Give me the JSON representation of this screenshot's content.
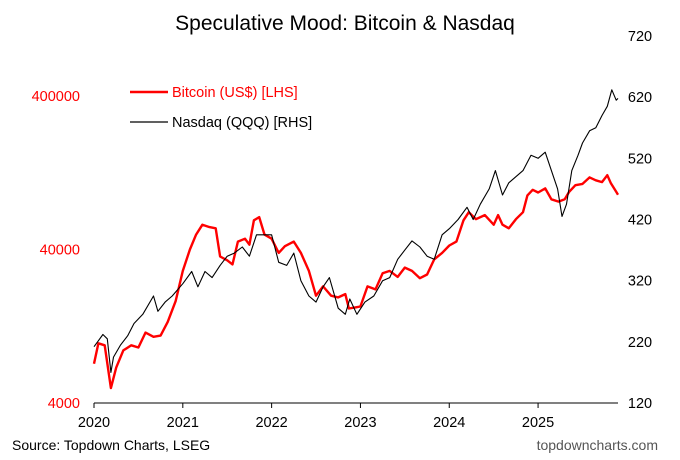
{
  "chart_data": {
    "type": "line",
    "title": "Speculative Mood: Bitcoin & Nasdaq",
    "source": "Source: Topdown Charts, LSEG",
    "watermark": "topdowncharts.com",
    "x_ticks": [
      "2020",
      "2021",
      "2022",
      "2023",
      "2024",
      "2025"
    ],
    "x_range": [
      2020.0,
      2025.9
    ],
    "left_axis": {
      "scale": "log",
      "range": [
        4000,
        400000
      ],
      "ticks": [
        "4000",
        "40000",
        "400000"
      ],
      "color": "#ff0000"
    },
    "right_axis": {
      "scale": "linear",
      "range": [
        120,
        720
      ],
      "ticks": [
        "120",
        "220",
        "320",
        "420",
        "520",
        "620",
        "720"
      ],
      "color": "#000000"
    },
    "legend_placement": "top-left",
    "grid": false,
    "series": [
      {
        "name": "Bitcoin (US$) [LHS]",
        "axis": "left",
        "color": "#ff0000",
        "points": [
          [
            2020.0,
            7200
          ],
          [
            2020.05,
            9800
          ],
          [
            2020.12,
            9500
          ],
          [
            2020.19,
            5000
          ],
          [
            2020.25,
            6800
          ],
          [
            2020.33,
            8800
          ],
          [
            2020.42,
            9500
          ],
          [
            2020.5,
            9200
          ],
          [
            2020.58,
            11500
          ],
          [
            2020.67,
            10800
          ],
          [
            2020.75,
            11000
          ],
          [
            2020.83,
            13500
          ],
          [
            2020.92,
            18500
          ],
          [
            2021.0,
            29000
          ],
          [
            2021.08,
            40000
          ],
          [
            2021.15,
            50000
          ],
          [
            2021.22,
            58000
          ],
          [
            2021.3,
            56000
          ],
          [
            2021.37,
            55000
          ],
          [
            2021.42,
            36000
          ],
          [
            2021.5,
            34000
          ],
          [
            2021.56,
            32000
          ],
          [
            2021.62,
            45000
          ],
          [
            2021.7,
            47000
          ],
          [
            2021.75,
            43000
          ],
          [
            2021.8,
            62000
          ],
          [
            2021.86,
            65000
          ],
          [
            2021.92,
            50000
          ],
          [
            2022.0,
            47000
          ],
          [
            2022.08,
            38000
          ],
          [
            2022.15,
            42000
          ],
          [
            2022.25,
            45000
          ],
          [
            2022.33,
            38000
          ],
          [
            2022.42,
            29000
          ],
          [
            2022.5,
            20000
          ],
          [
            2022.58,
            23000
          ],
          [
            2022.67,
            20000
          ],
          [
            2022.75,
            19500
          ],
          [
            2022.83,
            20500
          ],
          [
            2022.87,
            16500
          ],
          [
            2022.95,
            16800
          ],
          [
            2023.0,
            17000
          ],
          [
            2023.08,
            23000
          ],
          [
            2023.17,
            22000
          ],
          [
            2023.25,
            28000
          ],
          [
            2023.33,
            29000
          ],
          [
            2023.42,
            26500
          ],
          [
            2023.5,
            30500
          ],
          [
            2023.58,
            29000
          ],
          [
            2023.67,
            26000
          ],
          [
            2023.75,
            27500
          ],
          [
            2023.83,
            34500
          ],
          [
            2023.92,
            38000
          ],
          [
            2024.0,
            42500
          ],
          [
            2024.08,
            45000
          ],
          [
            2024.16,
            62000
          ],
          [
            2024.22,
            70000
          ],
          [
            2024.3,
            63000
          ],
          [
            2024.4,
            67000
          ],
          [
            2024.5,
            58000
          ],
          [
            2024.55,
            67000
          ],
          [
            2024.6,
            58000
          ],
          [
            2024.67,
            55000
          ],
          [
            2024.75,
            63000
          ],
          [
            2024.83,
            70000
          ],
          [
            2024.88,
            90000
          ],
          [
            2024.94,
            98000
          ],
          [
            2025.0,
            94000
          ],
          [
            2025.08,
            100000
          ],
          [
            2025.15,
            85000
          ],
          [
            2025.23,
            82000
          ],
          [
            2025.3,
            85000
          ],
          [
            2025.35,
            95000
          ],
          [
            2025.42,
            105000
          ],
          [
            2025.5,
            107000
          ],
          [
            2025.58,
            118000
          ],
          [
            2025.65,
            113000
          ],
          [
            2025.72,
            110000
          ],
          [
            2025.78,
            122000
          ],
          [
            2025.82,
            108000
          ],
          [
            2025.88,
            95000
          ],
          [
            2025.9,
            91000
          ]
        ]
      },
      {
        "name": "Nasdaq (QQQ) [RHS]",
        "axis": "right",
        "color": "#000000",
        "points": [
          [
            2020.0,
            212
          ],
          [
            2020.04,
            220
          ],
          [
            2020.1,
            232
          ],
          [
            2020.15,
            225
          ],
          [
            2020.19,
            170
          ],
          [
            2020.22,
            195
          ],
          [
            2020.3,
            215
          ],
          [
            2020.38,
            230
          ],
          [
            2020.45,
            250
          ],
          [
            2020.55,
            265
          ],
          [
            2020.67,
            295
          ],
          [
            2020.72,
            270
          ],
          [
            2020.8,
            285
          ],
          [
            2020.88,
            295
          ],
          [
            2021.0,
            315
          ],
          [
            2021.1,
            335
          ],
          [
            2021.17,
            310
          ],
          [
            2021.25,
            335
          ],
          [
            2021.33,
            325
          ],
          [
            2021.42,
            345
          ],
          [
            2021.5,
            360
          ],
          [
            2021.58,
            365
          ],
          [
            2021.67,
            375
          ],
          [
            2021.75,
            360
          ],
          [
            2021.83,
            395
          ],
          [
            2021.92,
            395
          ],
          [
            2022.0,
            395
          ],
          [
            2022.08,
            350
          ],
          [
            2022.17,
            345
          ],
          [
            2022.25,
            365
          ],
          [
            2022.33,
            320
          ],
          [
            2022.42,
            295
          ],
          [
            2022.5,
            285
          ],
          [
            2022.58,
            310
          ],
          [
            2022.65,
            325
          ],
          [
            2022.75,
            275
          ],
          [
            2022.83,
            265
          ],
          [
            2022.88,
            290
          ],
          [
            2022.96,
            265
          ],
          [
            2023.05,
            285
          ],
          [
            2023.15,
            295
          ],
          [
            2023.25,
            320
          ],
          [
            2023.33,
            325
          ],
          [
            2023.42,
            355
          ],
          [
            2023.5,
            370
          ],
          [
            2023.58,
            385
          ],
          [
            2023.67,
            375
          ],
          [
            2023.75,
            360
          ],
          [
            2023.83,
            355
          ],
          [
            2023.92,
            395
          ],
          [
            2024.0,
            405
          ],
          [
            2024.1,
            420
          ],
          [
            2024.2,
            440
          ],
          [
            2024.27,
            420
          ],
          [
            2024.35,
            445
          ],
          [
            2024.45,
            470
          ],
          [
            2024.52,
            500
          ],
          [
            2024.6,
            460
          ],
          [
            2024.67,
            480
          ],
          [
            2024.75,
            490
          ],
          [
            2024.83,
            500
          ],
          [
            2024.92,
            525
          ],
          [
            2025.0,
            520
          ],
          [
            2025.08,
            530
          ],
          [
            2025.15,
            500
          ],
          [
            2025.22,
            470
          ],
          [
            2025.27,
            425
          ],
          [
            2025.32,
            445
          ],
          [
            2025.38,
            500
          ],
          [
            2025.45,
            525
          ],
          [
            2025.5,
            545
          ],
          [
            2025.58,
            565
          ],
          [
            2025.65,
            570
          ],
          [
            2025.72,
            590
          ],
          [
            2025.78,
            605
          ],
          [
            2025.83,
            632
          ],
          [
            2025.88,
            615
          ],
          [
            2025.9,
            618
          ]
        ]
      }
    ]
  }
}
